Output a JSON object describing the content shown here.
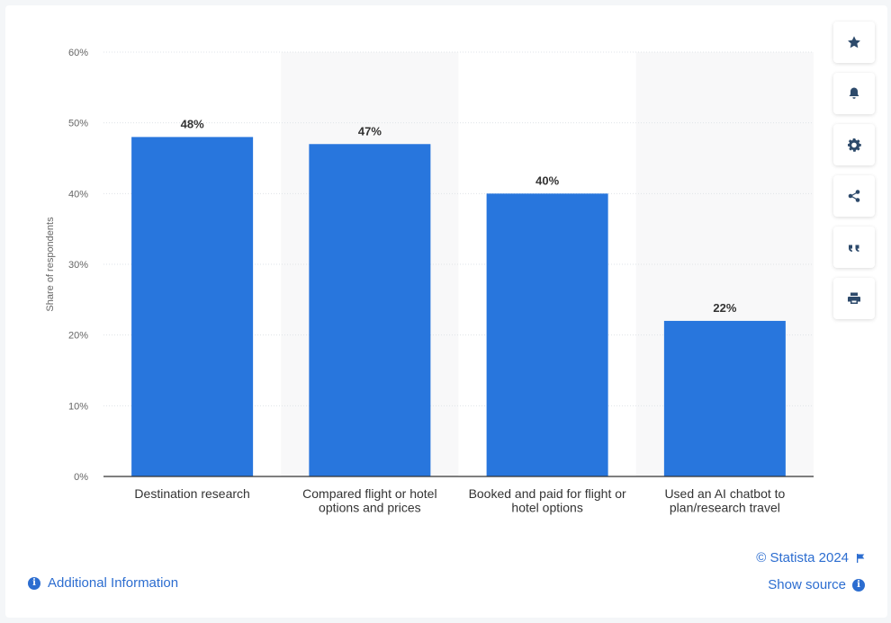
{
  "chart_data": {
    "type": "bar",
    "categories": [
      "Destination research",
      "Compared flight or hotel options and prices",
      "Booked and paid for flight or hotel options",
      "Used an AI chatbot to plan/research travel"
    ],
    "category_lines": [
      [
        "Destination research"
      ],
      [
        "Compared flight or hotel",
        "options and prices"
      ],
      [
        "Booked and paid for flight or",
        "hotel options"
      ],
      [
        "Used an AI chatbot to",
        "plan/research travel"
      ]
    ],
    "values": [
      48,
      47,
      40,
      22
    ],
    "value_labels": [
      "48%",
      "47%",
      "40%",
      "22%"
    ],
    "ylabel": "Share of respondents",
    "ylim": [
      0,
      60
    ],
    "yticks": [
      0,
      10,
      20,
      30,
      40,
      50,
      60
    ],
    "ytick_labels": [
      "0%",
      "10%",
      "20%",
      "30%",
      "40%",
      "50%",
      "60%"
    ],
    "grid": true,
    "bar_color": "#2876dd"
  },
  "toolbar": {
    "buttons": [
      {
        "name": "favorite-button",
        "icon": "star-icon"
      },
      {
        "name": "notification-button",
        "icon": "bell-icon"
      },
      {
        "name": "settings-button",
        "icon": "gear-icon"
      },
      {
        "name": "share-button",
        "icon": "share-icon"
      },
      {
        "name": "cite-button",
        "icon": "quote-icon"
      },
      {
        "name": "print-button",
        "icon": "print-icon"
      }
    ]
  },
  "footer": {
    "copyright": "© Statista 2024",
    "show_source": "Show source",
    "additional_info": "Additional Information"
  },
  "colors": {
    "accent": "#2c6dd0",
    "bar": "#2876dd",
    "icon": "#2d4a6b"
  }
}
